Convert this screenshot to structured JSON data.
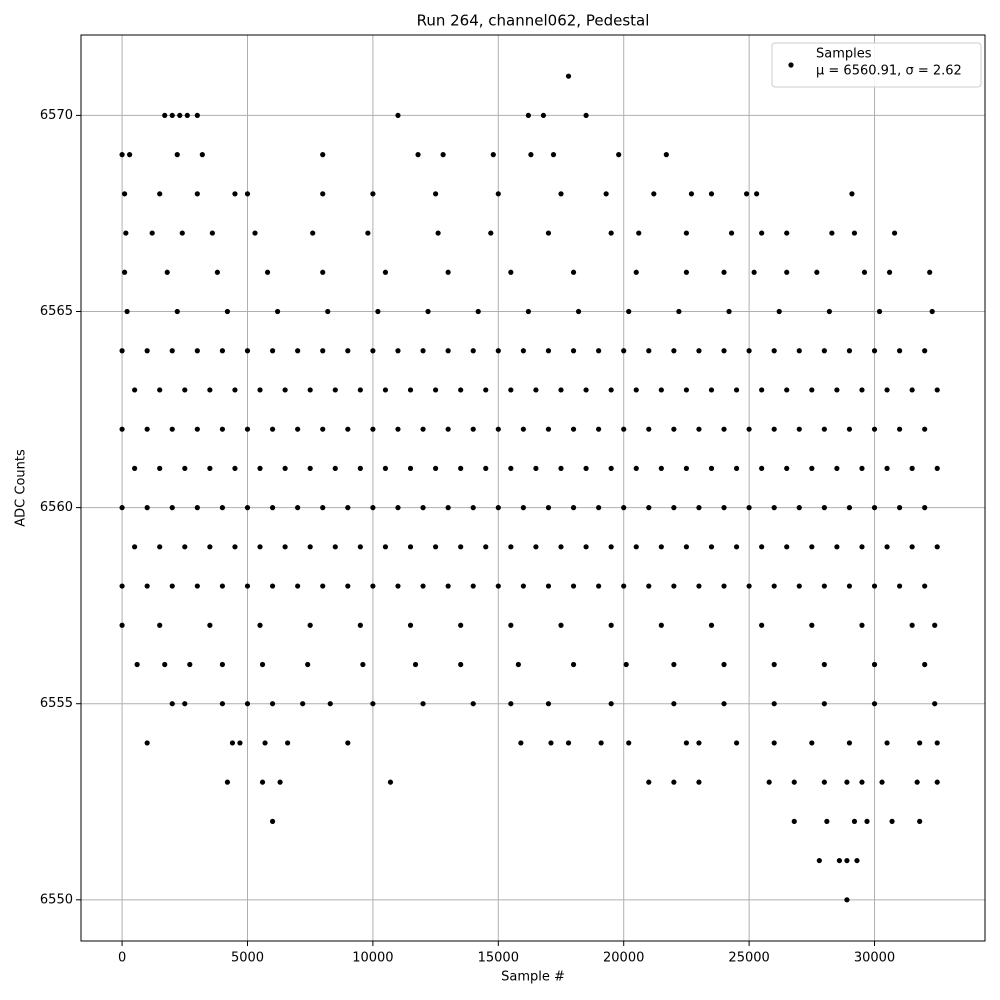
{
  "chart_data": {
    "type": "scatter",
    "title": "Run 264, channel062, Pedestal",
    "xlabel": "Sample #",
    "ylabel": "ADC Counts",
    "xlim": [
      -1638,
      34405
    ],
    "ylim": [
      6548.95,
      6572.05
    ],
    "xticks": [
      0,
      5000,
      10000,
      15000,
      20000,
      25000,
      30000
    ],
    "yticks": [
      6550,
      6555,
      6560,
      6565,
      6570
    ],
    "grid": true,
    "color": "#000000",
    "legend": {
      "loc": "upper right",
      "label": "Samples",
      "stats": "μ = 6560.91, σ = 2.62"
    },
    "points": [
      [
        0,
        6558
      ],
      [
        1000,
        6558
      ],
      [
        2000,
        6558
      ],
      [
        3000,
        6558
      ],
      [
        4000,
        6558
      ],
      [
        5000,
        6558
      ],
      [
        6000,
        6558
      ],
      [
        7000,
        6558
      ],
      [
        8000,
        6558
      ],
      [
        9000,
        6558
      ],
      [
        10000,
        6558
      ],
      [
        11000,
        6558
      ],
      [
        12000,
        6558
      ],
      [
        13000,
        6558
      ],
      [
        14000,
        6558
      ],
      [
        15000,
        6558
      ],
      [
        16000,
        6558
      ],
      [
        17000,
        6558
      ],
      [
        18000,
        6558
      ],
      [
        19000,
        6558
      ],
      [
        20000,
        6558
      ],
      [
        21000,
        6558
      ],
      [
        22000,
        6558
      ],
      [
        23000,
        6558
      ],
      [
        24000,
        6558
      ],
      [
        25000,
        6558
      ],
      [
        26000,
        6558
      ],
      [
        27000,
        6558
      ],
      [
        28000,
        6558
      ],
      [
        29000,
        6558
      ],
      [
        30000,
        6558
      ],
      [
        31000,
        6558
      ],
      [
        32000,
        6558
      ],
      [
        500,
        6559
      ],
      [
        1500,
        6559
      ],
      [
        2500,
        6559
      ],
      [
        3500,
        6559
      ],
      [
        4500,
        6559
      ],
      [
        5500,
        6559
      ],
      [
        6500,
        6559
      ],
      [
        7500,
        6559
      ],
      [
        8500,
        6559
      ],
      [
        9500,
        6559
      ],
      [
        10500,
        6559
      ],
      [
        11500,
        6559
      ],
      [
        12500,
        6559
      ],
      [
        13500,
        6559
      ],
      [
        14500,
        6559
      ],
      [
        15500,
        6559
      ],
      [
        16500,
        6559
      ],
      [
        17500,
        6559
      ],
      [
        18500,
        6559
      ],
      [
        19500,
        6559
      ],
      [
        20500,
        6559
      ],
      [
        21500,
        6559
      ],
      [
        22500,
        6559
      ],
      [
        23500,
        6559
      ],
      [
        24500,
        6559
      ],
      [
        25500,
        6559
      ],
      [
        26500,
        6559
      ],
      [
        27500,
        6559
      ],
      [
        28500,
        6559
      ],
      [
        29500,
        6559
      ],
      [
        30500,
        6559
      ],
      [
        31500,
        6559
      ],
      [
        32500,
        6559
      ],
      [
        0,
        6560
      ],
      [
        1000,
        6560
      ],
      [
        2000,
        6560
      ],
      [
        3000,
        6560
      ],
      [
        4000,
        6560
      ],
      [
        5000,
        6560
      ],
      [
        6000,
        6560
      ],
      [
        7000,
        6560
      ],
      [
        8000,
        6560
      ],
      [
        9000,
        6560
      ],
      [
        10000,
        6560
      ],
      [
        11000,
        6560
      ],
      [
        12000,
        6560
      ],
      [
        13000,
        6560
      ],
      [
        14000,
        6560
      ],
      [
        15000,
        6560
      ],
      [
        16000,
        6560
      ],
      [
        17000,
        6560
      ],
      [
        18000,
        6560
      ],
      [
        19000,
        6560
      ],
      [
        20000,
        6560
      ],
      [
        21000,
        6560
      ],
      [
        22000,
        6560
      ],
      [
        23000,
        6560
      ],
      [
        24000,
        6560
      ],
      [
        25000,
        6560
      ],
      [
        26000,
        6560
      ],
      [
        27000,
        6560
      ],
      [
        28000,
        6560
      ],
      [
        29000,
        6560
      ],
      [
        30000,
        6560
      ],
      [
        31000,
        6560
      ],
      [
        32000,
        6560
      ],
      [
        500,
        6561
      ],
      [
        1500,
        6561
      ],
      [
        2500,
        6561
      ],
      [
        3500,
        6561
      ],
      [
        4500,
        6561
      ],
      [
        5500,
        6561
      ],
      [
        6500,
        6561
      ],
      [
        7500,
        6561
      ],
      [
        8500,
        6561
      ],
      [
        9500,
        6561
      ],
      [
        10500,
        6561
      ],
      [
        11500,
        6561
      ],
      [
        12500,
        6561
      ],
      [
        13500,
        6561
      ],
      [
        14500,
        6561
      ],
      [
        15500,
        6561
      ],
      [
        16500,
        6561
      ],
      [
        17500,
        6561
      ],
      [
        18500,
        6561
      ],
      [
        19500,
        6561
      ],
      [
        20500,
        6561
      ],
      [
        21500,
        6561
      ],
      [
        22500,
        6561
      ],
      [
        23500,
        6561
      ],
      [
        24500,
        6561
      ],
      [
        25500,
        6561
      ],
      [
        26500,
        6561
      ],
      [
        27500,
        6561
      ],
      [
        28500,
        6561
      ],
      [
        29500,
        6561
      ],
      [
        30500,
        6561
      ],
      [
        31500,
        6561
      ],
      [
        32500,
        6561
      ],
      [
        0,
        6562
      ],
      [
        1000,
        6562
      ],
      [
        2000,
        6562
      ],
      [
        3000,
        6562
      ],
      [
        4000,
        6562
      ],
      [
        5000,
        6562
      ],
      [
        6000,
        6562
      ],
      [
        7000,
        6562
      ],
      [
        8000,
        6562
      ],
      [
        9000,
        6562
      ],
      [
        10000,
        6562
      ],
      [
        11000,
        6562
      ],
      [
        12000,
        6562
      ],
      [
        13000,
        6562
      ],
      [
        14000,
        6562
      ],
      [
        15000,
        6562
      ],
      [
        16000,
        6562
      ],
      [
        17000,
        6562
      ],
      [
        18000,
        6562
      ],
      [
        19000,
        6562
      ],
      [
        20000,
        6562
      ],
      [
        21000,
        6562
      ],
      [
        22000,
        6562
      ],
      [
        23000,
        6562
      ],
      [
        24000,
        6562
      ],
      [
        25000,
        6562
      ],
      [
        26000,
        6562
      ],
      [
        27000,
        6562
      ],
      [
        28000,
        6562
      ],
      [
        29000,
        6562
      ],
      [
        30000,
        6562
      ],
      [
        31000,
        6562
      ],
      [
        32000,
        6562
      ],
      [
        500,
        6563
      ],
      [
        1500,
        6563
      ],
      [
        2500,
        6563
      ],
      [
        3500,
        6563
      ],
      [
        4500,
        6563
      ],
      [
        5500,
        6563
      ],
      [
        6500,
        6563
      ],
      [
        7500,
        6563
      ],
      [
        8500,
        6563
      ],
      [
        9500,
        6563
      ],
      [
        10500,
        6563
      ],
      [
        11500,
        6563
      ],
      [
        12500,
        6563
      ],
      [
        13500,
        6563
      ],
      [
        14500,
        6563
      ],
      [
        15500,
        6563
      ],
      [
        16500,
        6563
      ],
      [
        17500,
        6563
      ],
      [
        18500,
        6563
      ],
      [
        19500,
        6563
      ],
      [
        20500,
        6563
      ],
      [
        21500,
        6563
      ],
      [
        22500,
        6563
      ],
      [
        23500,
        6563
      ],
      [
        24500,
        6563
      ],
      [
        25500,
        6563
      ],
      [
        26500,
        6563
      ],
      [
        27500,
        6563
      ],
      [
        28500,
        6563
      ],
      [
        29500,
        6563
      ],
      [
        30500,
        6563
      ],
      [
        31500,
        6563
      ],
      [
        32500,
        6563
      ],
      [
        0,
        6564
      ],
      [
        1000,
        6564
      ],
      [
        2000,
        6564
      ],
      [
        3000,
        6564
      ],
      [
        4000,
        6564
      ],
      [
        5000,
        6564
      ],
      [
        6000,
        6564
      ],
      [
        7000,
        6564
      ],
      [
        8000,
        6564
      ],
      [
        9000,
        6564
      ],
      [
        10000,
        6564
      ],
      [
        11000,
        6564
      ],
      [
        12000,
        6564
      ],
      [
        13000,
        6564
      ],
      [
        14000,
        6564
      ],
      [
        15000,
        6564
      ],
      [
        16000,
        6564
      ],
      [
        17000,
        6564
      ],
      [
        18000,
        6564
      ],
      [
        19000,
        6564
      ],
      [
        20000,
        6564
      ],
      [
        21000,
        6564
      ],
      [
        22000,
        6564
      ],
      [
        23000,
        6564
      ],
      [
        24000,
        6564
      ],
      [
        25000,
        6564
      ],
      [
        26000,
        6564
      ],
      [
        27000,
        6564
      ],
      [
        28000,
        6564
      ],
      [
        29000,
        6564
      ],
      [
        30000,
        6564
      ],
      [
        31000,
        6564
      ],
      [
        32000,
        6564
      ],
      [
        0,
        6557
      ],
      [
        1500,
        6557
      ],
      [
        3500,
        6557
      ],
      [
        5500,
        6557
      ],
      [
        7500,
        6557
      ],
      [
        9500,
        6557
      ],
      [
        11500,
        6557
      ],
      [
        13500,
        6557
      ],
      [
        15500,
        6557
      ],
      [
        17500,
        6557
      ],
      [
        19500,
        6557
      ],
      [
        21500,
        6557
      ],
      [
        23500,
        6557
      ],
      [
        25500,
        6557
      ],
      [
        27500,
        6557
      ],
      [
        29500,
        6557
      ],
      [
        31500,
        6557
      ],
      [
        32400,
        6557
      ],
      [
        200,
        6565
      ],
      [
        2200,
        6565
      ],
      [
        4200,
        6565
      ],
      [
        6200,
        6565
      ],
      [
        8200,
        6565
      ],
      [
        10200,
        6565
      ],
      [
        12200,
        6565
      ],
      [
        14200,
        6565
      ],
      [
        16200,
        6565
      ],
      [
        18200,
        6565
      ],
      [
        20200,
        6565
      ],
      [
        22200,
        6565
      ],
      [
        24200,
        6565
      ],
      [
        26200,
        6565
      ],
      [
        28200,
        6565
      ],
      [
        30200,
        6565
      ],
      [
        32300,
        6565
      ],
      [
        100,
        6566
      ],
      [
        1800,
        6566
      ],
      [
        3800,
        6566
      ],
      [
        5800,
        6566
      ],
      [
        8000,
        6566
      ],
      [
        10500,
        6566
      ],
      [
        13000,
        6566
      ],
      [
        15500,
        6566
      ],
      [
        18000,
        6566
      ],
      [
        20500,
        6566
      ],
      [
        22500,
        6566
      ],
      [
        24000,
        6566
      ],
      [
        25200,
        6566
      ],
      [
        26500,
        6566
      ],
      [
        27700,
        6566
      ],
      [
        29600,
        6566
      ],
      [
        30600,
        6566
      ],
      [
        32200,
        6566
      ],
      [
        600,
        6556
      ],
      [
        1700,
        6556
      ],
      [
        2700,
        6556
      ],
      [
        4000,
        6556
      ],
      [
        5600,
        6556
      ],
      [
        7400,
        6556
      ],
      [
        9600,
        6556
      ],
      [
        11700,
        6556
      ],
      [
        13500,
        6556
      ],
      [
        15800,
        6556
      ],
      [
        18000,
        6556
      ],
      [
        20100,
        6556
      ],
      [
        22000,
        6556
      ],
      [
        24000,
        6556
      ],
      [
        26000,
        6556
      ],
      [
        28000,
        6556
      ],
      [
        30000,
        6556
      ],
      [
        32000,
        6556
      ],
      [
        150,
        6567
      ],
      [
        1200,
        6567
      ],
      [
        2400,
        6567
      ],
      [
        3600,
        6567
      ],
      [
        5300,
        6567
      ],
      [
        7600,
        6567
      ],
      [
        9800,
        6567
      ],
      [
        12600,
        6567
      ],
      [
        14700,
        6567
      ],
      [
        17000,
        6567
      ],
      [
        19500,
        6567
      ],
      [
        20600,
        6567
      ],
      [
        22500,
        6567
      ],
      [
        24300,
        6567
      ],
      [
        25500,
        6567
      ],
      [
        26500,
        6567
      ],
      [
        28300,
        6567
      ],
      [
        29200,
        6567
      ],
      [
        30800,
        6567
      ],
      [
        2000,
        6555
      ],
      [
        2500,
        6555
      ],
      [
        4000,
        6555
      ],
      [
        5000,
        6555
      ],
      [
        6000,
        6555
      ],
      [
        7200,
        6555
      ],
      [
        8300,
        6555
      ],
      [
        10000,
        6555
      ],
      [
        12000,
        6555
      ],
      [
        14000,
        6555
      ],
      [
        15500,
        6555
      ],
      [
        17000,
        6555
      ],
      [
        19500,
        6555
      ],
      [
        22000,
        6555
      ],
      [
        24000,
        6555
      ],
      [
        26000,
        6555
      ],
      [
        28000,
        6555
      ],
      [
        30000,
        6555
      ],
      [
        32400,
        6555
      ],
      [
        100,
        6568
      ],
      [
        1500,
        6568
      ],
      [
        3000,
        6568
      ],
      [
        4500,
        6568
      ],
      [
        5000,
        6568
      ],
      [
        8000,
        6568
      ],
      [
        10000,
        6568
      ],
      [
        12500,
        6568
      ],
      [
        15000,
        6568
      ],
      [
        17500,
        6568
      ],
      [
        19300,
        6568
      ],
      [
        21200,
        6568
      ],
      [
        22700,
        6568
      ],
      [
        23500,
        6568
      ],
      [
        24900,
        6568
      ],
      [
        25300,
        6568
      ],
      [
        29100,
        6568
      ],
      [
        1000,
        6554
      ],
      [
        4400,
        6554
      ],
      [
        4700,
        6554
      ],
      [
        5700,
        6554
      ],
      [
        6600,
        6554
      ],
      [
        9000,
        6554
      ],
      [
        15900,
        6554
      ],
      [
        17100,
        6554
      ],
      [
        17800,
        6554
      ],
      [
        19100,
        6554
      ],
      [
        20200,
        6554
      ],
      [
        22500,
        6554
      ],
      [
        23000,
        6554
      ],
      [
        24500,
        6554
      ],
      [
        26000,
        6554
      ],
      [
        27500,
        6554
      ],
      [
        29000,
        6554
      ],
      [
        30500,
        6554
      ],
      [
        31800,
        6554
      ],
      [
        32500,
        6554
      ],
      [
        4200,
        6553
      ],
      [
        5600,
        6553
      ],
      [
        6300,
        6553
      ],
      [
        10700,
        6553
      ],
      [
        21000,
        6553
      ],
      [
        22000,
        6553
      ],
      [
        23000,
        6553
      ],
      [
        25800,
        6553
      ],
      [
        26800,
        6553
      ],
      [
        28000,
        6553
      ],
      [
        28900,
        6553
      ],
      [
        29500,
        6553
      ],
      [
        30300,
        6553
      ],
      [
        31700,
        6553
      ],
      [
        32500,
        6553
      ],
      [
        0,
        6569
      ],
      [
        300,
        6569
      ],
      [
        2200,
        6569
      ],
      [
        3200,
        6569
      ],
      [
        8000,
        6569
      ],
      [
        11800,
        6569
      ],
      [
        12800,
        6569
      ],
      [
        14800,
        6569
      ],
      [
        16300,
        6569
      ],
      [
        17200,
        6569
      ],
      [
        19800,
        6569
      ],
      [
        21700,
        6569
      ],
      [
        1700,
        6570
      ],
      [
        2000,
        6570
      ],
      [
        2300,
        6570
      ],
      [
        2600,
        6570
      ],
      [
        3000,
        6570
      ],
      [
        11000,
        6570
      ],
      [
        16200,
        6570
      ],
      [
        16800,
        6570
      ],
      [
        18500,
        6570
      ],
      [
        6000,
        6552
      ],
      [
        26800,
        6552
      ],
      [
        28100,
        6552
      ],
      [
        29200,
        6552
      ],
      [
        29700,
        6552
      ],
      [
        30700,
        6552
      ],
      [
        31800,
        6552
      ],
      [
        27800,
        6551
      ],
      [
        28600,
        6551
      ],
      [
        28900,
        6551
      ],
      [
        29300,
        6551
      ],
      [
        28900,
        6550
      ],
      [
        17800,
        6571
      ]
    ]
  }
}
